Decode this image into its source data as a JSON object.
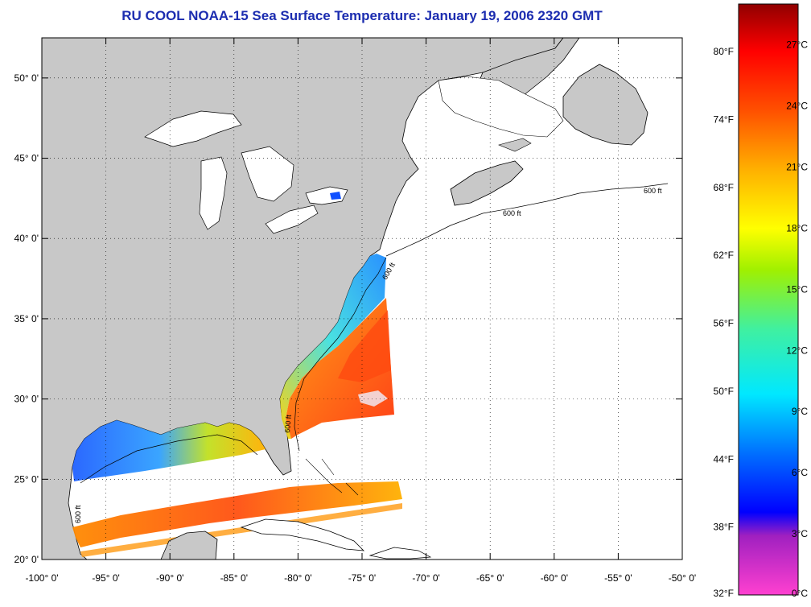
{
  "title": "RU COOL  NOAA-15  Sea Surface Temperature:  January 19, 2006 2320 GMT",
  "map": {
    "lon_range": [
      -100,
      -50
    ],
    "lat_range": [
      20,
      52.5
    ],
    "lat_labels": [
      "20° 0'",
      "25° 0'",
      "30° 0'",
      "35° 0'",
      "40° 0'",
      "45° 0'",
      "50° 0'"
    ],
    "lon_labels": [
      "-100° 0'",
      "-95° 0'",
      "-90° 0'",
      "-85° 0'",
      "-80° 0'",
      "-75° 0'",
      "-70° 0'",
      "-65° 0'",
      "-60° 0'",
      "-55° 0'",
      "-50° 0'"
    ],
    "contour_label": "600 ft",
    "colors": {
      "land": "#c8c8c8",
      "ocean": "#ffffff",
      "frame": "#000000",
      "title": "#1c2db0"
    }
  },
  "colorbar": {
    "celsius_labels": [
      "27°C",
      "24°C",
      "21°C",
      "18°C",
      "15°C",
      "12°C",
      "9°C",
      "6°C",
      "3°C",
      "0°C"
    ],
    "fahrenheit_labels": [
      "80°F",
      "74°F",
      "68°F",
      "62°F",
      "56°F",
      "50°F",
      "44°F",
      "38°F",
      "32°F"
    ],
    "range_celsius": [
      0,
      29
    ]
  }
}
